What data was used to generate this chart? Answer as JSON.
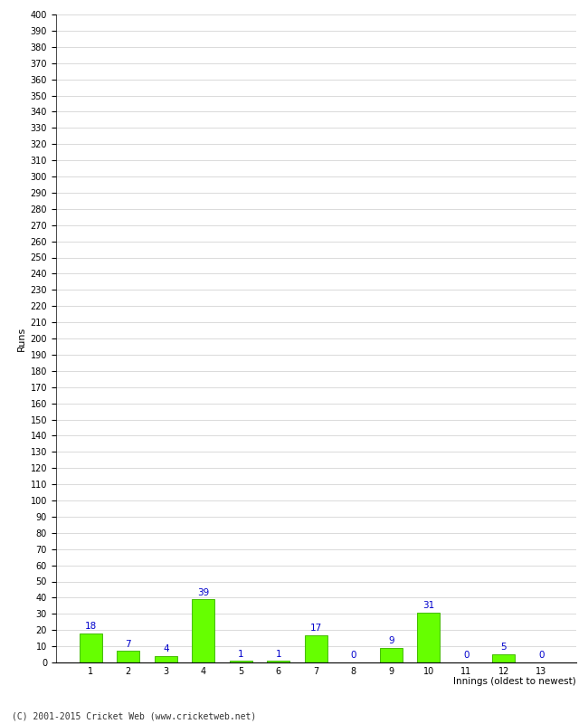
{
  "xlabel": "Innings (oldest to newest)",
  "ylabel": "Runs",
  "categories": [
    1,
    2,
    3,
    4,
    5,
    6,
    7,
    8,
    9,
    10,
    11,
    12,
    13
  ],
  "values": [
    18,
    7,
    4,
    39,
    1,
    1,
    17,
    0,
    9,
    31,
    0,
    5,
    0
  ],
  "bar_color": "#66ff00",
  "bar_edge_color": "#44bb00",
  "label_color": "#0000cc",
  "ylim": [
    0,
    400
  ],
  "ytick_step": 10,
  "background_color": "#ffffff",
  "grid_color": "#cccccc",
  "footer": "(C) 2001-2015 Cricket Web (www.cricketweb.net)"
}
